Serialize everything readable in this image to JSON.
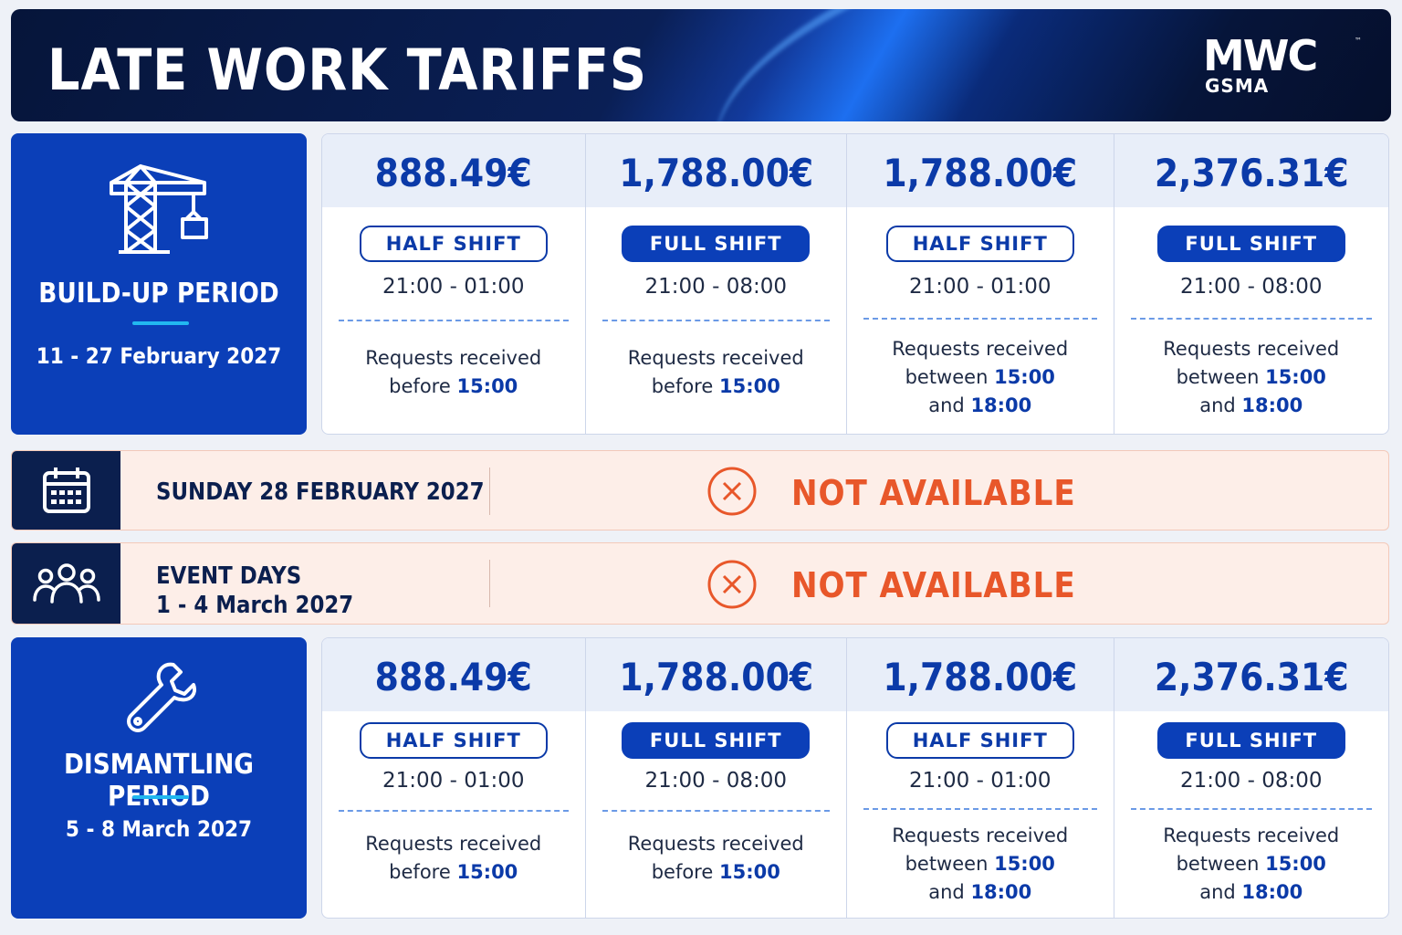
{
  "header": {
    "title": "LATE WORK TARIFFS",
    "logo": {
      "mwc": "MWC",
      "gsma": "GSMA",
      "tm": "™"
    }
  },
  "build_up": {
    "icon": "crane-icon",
    "label": "BUILD-UP PERIOD",
    "dates": "11 - 27 February 2027",
    "columns": [
      {
        "price": "888.49€",
        "shift": "HALF SHIFT",
        "time": "21:00 - 01:00",
        "req_pre": "Requests received",
        "req_mid": "before",
        "req_t1": "15:00",
        "req_and": "",
        "req_t2": ""
      },
      {
        "price": "1,788.00€",
        "shift": "FULL SHIFT",
        "time": "21:00 - 08:00",
        "req_pre": "Requests received",
        "req_mid": "before",
        "req_t1": "15:00",
        "req_and": "",
        "req_t2": ""
      },
      {
        "price": "1,788.00€",
        "shift": "HALF SHIFT",
        "time": "21:00 - 01:00",
        "req_pre": "Requests received",
        "req_mid": "between",
        "req_t1": "15:00",
        "req_and": "and",
        "req_t2": "18:00"
      },
      {
        "price": "2,376.31€",
        "shift": "FULL SHIFT",
        "time": "21:00 - 08:00",
        "req_pre": "Requests received",
        "req_mid": "between",
        "req_t1": "15:00",
        "req_and": "and",
        "req_t2": "18:00"
      }
    ]
  },
  "sunday": {
    "icon": "calendar-icon",
    "label": "SUNDAY 28 FEBRUARY 2027",
    "status_icon": "cancel-icon",
    "status": "NOT AVAILABLE"
  },
  "event_days": {
    "icon": "people-group-icon",
    "label_line1": "EVENT DAYS",
    "label_line2": "1 - 4 March 2027",
    "status_icon": "cancel-icon",
    "status": "NOT AVAILABLE"
  },
  "dismantling": {
    "icon": "wrench-icon",
    "label": "DISMANTLING PERIOD",
    "dates": "5 - 8 March 2027",
    "columns": [
      {
        "price": "888.49€",
        "shift": "HALF SHIFT",
        "time": "21:00 - 01:00",
        "req_pre": "Requests received",
        "req_mid": "before",
        "req_t1": "15:00",
        "req_and": "",
        "req_t2": ""
      },
      {
        "price": "1,788.00€",
        "shift": "FULL SHIFT",
        "time": "21:00 - 08:00",
        "req_pre": "Requests received",
        "req_mid": "before",
        "req_t1": "15:00",
        "req_and": "",
        "req_t2": ""
      },
      {
        "price": "1,788.00€",
        "shift": "HALF SHIFT",
        "time": "21:00 - 01:00",
        "req_pre": "Requests received",
        "req_mid": "between",
        "req_t1": "15:00",
        "req_and": "and",
        "req_t2": "18:00"
      },
      {
        "price": "2,376.31€",
        "shift": "FULL SHIFT",
        "time": "21:00 - 08:00",
        "req_pre": "Requests received",
        "req_mid": "between",
        "req_t1": "15:00",
        "req_and": "and",
        "req_t2": "18:00"
      }
    ]
  },
  "colors": {
    "navy": "#0b1f4e",
    "blue": "#0b3fb8",
    "accent": "#22b8f0",
    "unavailable": "#e8572a"
  }
}
